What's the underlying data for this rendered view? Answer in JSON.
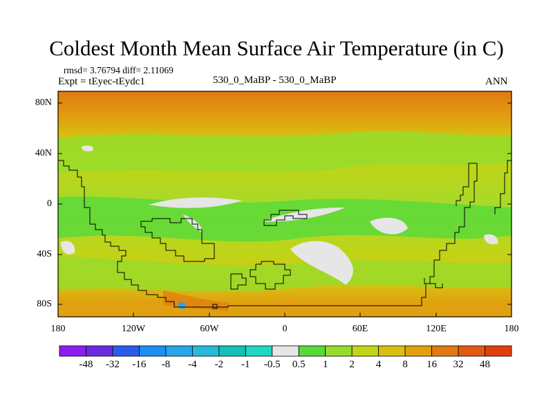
{
  "header": {
    "title": "Coldest Month Mean Surface Air Temperature (in C)",
    "stats": "rmsd= 3.76794 diff= 2.11069",
    "experiment": "Expt = tEyec-tEydc1",
    "comparison": "530_0_MaBP - 530_0_MaBP",
    "season": "ANN"
  },
  "axes": {
    "y_ticks": [
      "80N",
      "40N",
      "0",
      "40S",
      "80S"
    ],
    "x_ticks": [
      "180",
      "120W",
      "60W",
      "0",
      "60E",
      "120E",
      "180"
    ]
  },
  "colorbar": {
    "labels": [
      "-48",
      "-32",
      "-16",
      "-8",
      "-4",
      "-2",
      "-1",
      "-0.5",
      "0.5",
      "1",
      "2",
      "4",
      "8",
      "16",
      "32",
      "48"
    ],
    "colors": [
      "#8c1ef0",
      "#6a2bde",
      "#2a5ce8",
      "#1c8ef0",
      "#27a6e8",
      "#2ab8d8",
      "#14c0b8",
      "#20d8c0",
      "#e6e6e6",
      "#5ad93a",
      "#96dc2c",
      "#c0d418",
      "#d8c010",
      "#e0a010",
      "#e07a12",
      "#e05a12",
      "#e04010"
    ]
  },
  "chart_data": {
    "type": "heatmap",
    "title": "Coldest Month Mean Surface Air Temperature (in C)",
    "variable": "coldest month mean surface air temperature difference",
    "units": "C",
    "x_range": [
      -180,
      180
    ],
    "y_range": [
      -90,
      90
    ],
    "contour_levels": [
      -48,
      -32,
      -16,
      -8,
      -4,
      -2,
      -1,
      -0.5,
      0.5,
      1,
      2,
      4,
      8,
      16,
      32,
      48
    ],
    "zonal_pattern": [
      {
        "lat": 80,
        "value": 12
      },
      {
        "lat": 60,
        "value": 4
      },
      {
        "lat": 40,
        "value": 2
      },
      {
        "lat": 20,
        "value": 1.5
      },
      {
        "lat": 0,
        "value": 1
      },
      {
        "lat": -20,
        "value": 1.5
      },
      {
        "lat": -40,
        "value": 2
      },
      {
        "lat": -60,
        "value": 3
      },
      {
        "lat": -80,
        "value": 5
      }
    ],
    "near_zero_patches": [
      {
        "lon": -100,
        "lat": 0
      },
      {
        "lon": 0,
        "lat": -10
      },
      {
        "lon": 40,
        "lat": -40
      },
      {
        "lon": 80,
        "lat": -20
      },
      {
        "lon": -160,
        "lat": -40
      }
    ]
  }
}
